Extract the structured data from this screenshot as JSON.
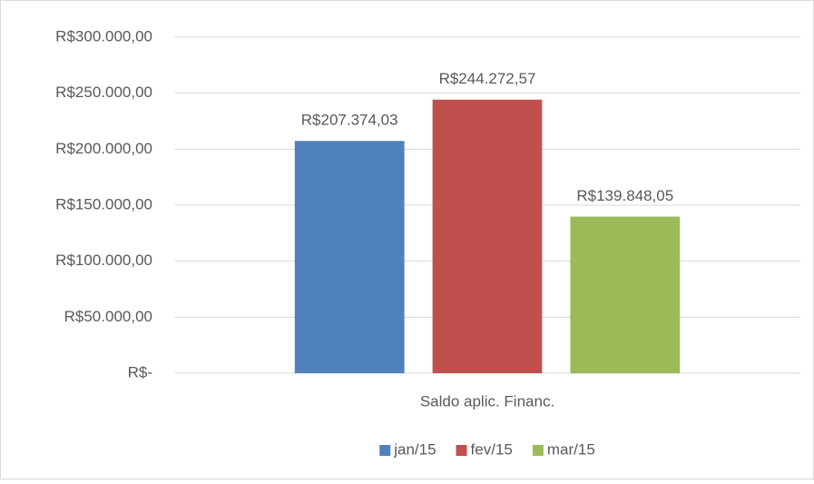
{
  "chart_data": {
    "type": "bar",
    "categories": [
      "Saldo aplic. Financ."
    ],
    "series": [
      {
        "name": "jan/15",
        "color": "#4f81bd",
        "values": [
          207374.03
        ],
        "value_labels": [
          "R$207.374,03"
        ]
      },
      {
        "name": "fev/15",
        "color": "#c0504d",
        "values": [
          244272.57
        ],
        "value_labels": [
          "R$244.272,57"
        ]
      },
      {
        "name": "mar/15",
        "color": "#9bbb59",
        "values": [
          139848.05
        ],
        "value_labels": [
          "R$139.848,05"
        ]
      }
    ],
    "ylim": [
      0,
      300000
    ],
    "yticks": [
      {
        "value": 0,
        "label": "R$-"
      },
      {
        "value": 50000,
        "label": "R$50.000,00"
      },
      {
        "value": 100000,
        "label": "R$100.000,00"
      },
      {
        "value": 150000,
        "label": "R$150.000,00"
      },
      {
        "value": 200000,
        "label": "R$200.000,00"
      },
      {
        "value": 250000,
        "label": "R$250.000,00"
      },
      {
        "value": 300000,
        "label": "R$300.000,00"
      }
    ],
    "grid": true,
    "legend": "bottom"
  }
}
